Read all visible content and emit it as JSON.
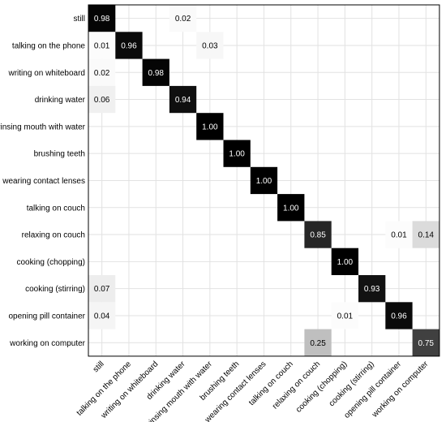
{
  "chart_data": {
    "type": "heatmap",
    "title": "",
    "xlabel": "",
    "ylabel": "",
    "row_labels": [
      "still",
      "talking on the phone",
      "writing on whiteboard",
      "drinking water",
      "rinsing mouth with water",
      "brushing teeth",
      "wearing contact lenses",
      "talking on couch",
      "relaxing on couch",
      "cooking (chopping)",
      "cooking (stirring)",
      "opening pill container",
      "working on computer"
    ],
    "column_labels": [
      "still",
      "talking on the phone",
      "writing on whiteboard",
      "drinking water",
      "rinsing mouth with water",
      "brushing teeth",
      "wearing contact lenses",
      "talking on couch",
      "relaxing on couch",
      "cooking (chopping)",
      "cooking (stirring)",
      "opening pill container",
      "working on computer"
    ],
    "values": [
      [
        0.98,
        null,
        null,
        0.02,
        null,
        null,
        null,
        null,
        null,
        null,
        null,
        null,
        null
      ],
      [
        0.01,
        0.96,
        null,
        null,
        0.03,
        null,
        null,
        null,
        null,
        null,
        null,
        null,
        null
      ],
      [
        0.02,
        null,
        0.98,
        null,
        null,
        null,
        null,
        null,
        null,
        null,
        null,
        null,
        null
      ],
      [
        0.06,
        null,
        null,
        0.94,
        null,
        null,
        null,
        null,
        null,
        null,
        null,
        null,
        null
      ],
      [
        null,
        null,
        null,
        null,
        1.0,
        null,
        null,
        null,
        null,
        null,
        null,
        null,
        null
      ],
      [
        null,
        null,
        null,
        null,
        null,
        1.0,
        null,
        null,
        null,
        null,
        null,
        null,
        null
      ],
      [
        null,
        null,
        null,
        null,
        null,
        null,
        1.0,
        null,
        null,
        null,
        null,
        null,
        null
      ],
      [
        null,
        null,
        null,
        null,
        null,
        null,
        null,
        1.0,
        null,
        null,
        null,
        null,
        null
      ],
      [
        null,
        null,
        null,
        null,
        null,
        null,
        null,
        null,
        0.85,
        null,
        null,
        0.01,
        0.14
      ],
      [
        null,
        null,
        null,
        null,
        null,
        null,
        null,
        null,
        null,
        1.0,
        null,
        null,
        null
      ],
      [
        0.07,
        null,
        null,
        null,
        null,
        null,
        null,
        null,
        null,
        null,
        0.93,
        null,
        null
      ],
      [
        0.04,
        null,
        null,
        null,
        null,
        null,
        null,
        null,
        null,
        0.01,
        null,
        0.96,
        null
      ],
      [
        null,
        null,
        null,
        null,
        null,
        null,
        null,
        null,
        0.25,
        null,
        null,
        null,
        0.75
      ]
    ],
    "value_format": "0.00",
    "colormap": "white-to-black",
    "grid": true
  }
}
